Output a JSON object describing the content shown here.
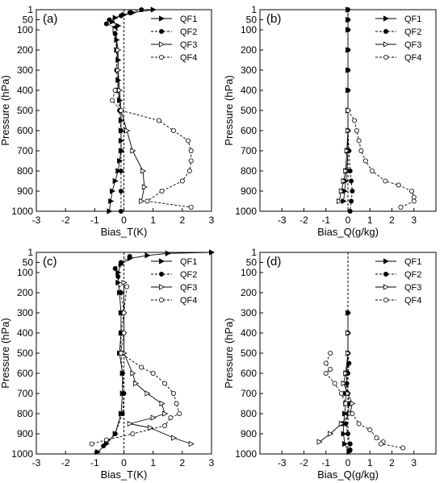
{
  "chart_data": [
    {
      "panel_label": "(a)",
      "type": "line",
      "xlabel": "Bias_T(K)",
      "ylabel": "Pressure (hPa)",
      "xlim": [
        -3,
        3
      ],
      "ylim": [
        1000,
        1
      ],
      "xticks": [
        -3,
        -2,
        -1,
        0,
        1,
        2,
        3
      ],
      "yticks": [
        1,
        50,
        100,
        200,
        300,
        400,
        500,
        600,
        700,
        800,
        900,
        1000
      ],
      "grid": false,
      "legend_position": "top-right",
      "reference_line_x": 0,
      "series": [
        {
          "name": "QF1",
          "marker": "right-triangle-filled",
          "line": "solid",
          "points": [
            [
              1.0,
              1
            ],
            [
              0.3,
              15
            ],
            [
              0.0,
              25
            ],
            [
              -0.3,
              40
            ],
            [
              -0.4,
              60
            ],
            [
              -0.2,
              80
            ],
            [
              -0.3,
              100
            ],
            [
              -0.25,
              150
            ],
            [
              -0.25,
              200
            ],
            [
              -0.2,
              250
            ],
            [
              -0.2,
              300
            ],
            [
              -0.2,
              350
            ],
            [
              -0.2,
              400
            ],
            [
              -0.15,
              450
            ],
            [
              -0.1,
              500
            ],
            [
              -0.1,
              550
            ],
            [
              -0.1,
              600
            ],
            [
              -0.1,
              650
            ],
            [
              -0.1,
              700
            ],
            [
              -0.15,
              750
            ],
            [
              -0.2,
              800
            ],
            [
              -0.3,
              850
            ],
            [
              -0.4,
              900
            ],
            [
              -0.45,
              950
            ],
            [
              -0.5,
              1000
            ]
          ]
        },
        {
          "name": "QF2",
          "marker": "circle-filled",
          "line": "dashed",
          "points": [
            [
              0.6,
              1
            ],
            [
              0.2,
              15
            ],
            [
              -0.1,
              30
            ],
            [
              -0.5,
              50
            ],
            [
              -0.6,
              70
            ],
            [
              -0.3,
              90
            ],
            [
              -0.3,
              120
            ],
            [
              -0.25,
              200
            ],
            [
              -0.25,
              300
            ],
            [
              -0.2,
              400
            ],
            [
              -0.15,
              500
            ],
            [
              -0.1,
              600
            ],
            [
              -0.1,
              700
            ],
            [
              -0.1,
              800
            ],
            [
              -0.1,
              900
            ],
            [
              -0.1,
              1000
            ]
          ]
        },
        {
          "name": "QF3",
          "marker": "right-triangle-open",
          "line": "solid",
          "points": [
            [
              -0.3,
              100
            ],
            [
              -0.2,
              200
            ],
            [
              -0.2,
              300
            ],
            [
              -0.15,
              400
            ],
            [
              -0.1,
              500
            ],
            [
              0.1,
              600
            ],
            [
              0.3,
              700
            ],
            [
              0.65,
              800
            ],
            [
              0.7,
              880
            ],
            [
              0.6,
              950
            ]
          ]
        },
        {
          "name": "QF4",
          "marker": "circle-open",
          "line": "dashed",
          "points": [
            [
              -0.3,
              400
            ],
            [
              -0.4,
              450
            ],
            [
              -0.1,
              500
            ],
            [
              1.2,
              550
            ],
            [
              1.7,
              600
            ],
            [
              2.2,
              650
            ],
            [
              2.3,
              700
            ],
            [
              2.3,
              750
            ],
            [
              2.25,
              800
            ],
            [
              2.0,
              850
            ],
            [
              1.3,
              900
            ],
            [
              0.8,
              950
            ],
            [
              2.3,
              980
            ]
          ]
        }
      ]
    },
    {
      "panel_label": "(b)",
      "type": "line",
      "xlabel": "Bias_Q(g/kg)",
      "ylabel": "Pressure (hPa)",
      "xlim": [
        -4,
        4
      ],
      "ylim": [
        1000,
        1
      ],
      "xticks": [
        -3,
        -2,
        -1,
        0,
        1,
        2,
        3
      ],
      "yticks": [
        1,
        50,
        100,
        200,
        300,
        400,
        500,
        600,
        700,
        800,
        900,
        1000
      ],
      "grid": false,
      "legend_position": "top-right",
      "reference_line_x": 0,
      "series": [
        {
          "name": "QF1",
          "marker": "right-triangle-filled",
          "line": "solid",
          "points": [
            [
              0,
              1
            ],
            [
              0,
              50
            ],
            [
              0,
              100
            ],
            [
              0,
              200
            ],
            [
              0,
              300
            ],
            [
              0,
              400
            ],
            [
              0,
              500
            ],
            [
              0,
              600
            ],
            [
              0,
              700
            ],
            [
              -0.05,
              800
            ],
            [
              -0.1,
              850
            ],
            [
              -0.15,
              900
            ],
            [
              -0.2,
              950
            ]
          ]
        },
        {
          "name": "QF2",
          "marker": "circle-filled",
          "line": "dashed",
          "points": [
            [
              0,
              1
            ],
            [
              0,
              50
            ],
            [
              0,
              100
            ],
            [
              0,
              200
            ],
            [
              0,
              300
            ],
            [
              0,
              400
            ],
            [
              0,
              500
            ],
            [
              0,
              600
            ],
            [
              0.05,
              700
            ],
            [
              0.1,
              800
            ],
            [
              0.15,
              850
            ],
            [
              0.2,
              900
            ],
            [
              0.15,
              950
            ],
            [
              0.1,
              1000
            ]
          ]
        },
        {
          "name": "QF3",
          "marker": "right-triangle-open",
          "line": "solid",
          "points": [
            [
              0,
              500
            ],
            [
              0,
              600
            ],
            [
              -0.05,
              700
            ],
            [
              -0.1,
              800
            ],
            [
              -0.2,
              850
            ],
            [
              -0.3,
              900
            ],
            [
              -0.4,
              950
            ]
          ]
        },
        {
          "name": "QF4",
          "marker": "circle-open",
          "line": "dashed",
          "points": [
            [
              0,
              500
            ],
            [
              0.3,
              550
            ],
            [
              0.4,
              600
            ],
            [
              0.5,
              650
            ],
            [
              0.6,
              700
            ],
            [
              0.8,
              750
            ],
            [
              1.1,
              800
            ],
            [
              1.7,
              850
            ],
            [
              2.3,
              870
            ],
            [
              2.9,
              900
            ],
            [
              3.0,
              930
            ],
            [
              3.0,
              950
            ],
            [
              2.4,
              980
            ]
          ]
        }
      ]
    },
    {
      "panel_label": "(c)",
      "type": "line",
      "xlabel": "Bias_T(K)",
      "ylabel": "Pressure (hPa)",
      "xlim": [
        -3,
        3
      ],
      "ylim": [
        1000,
        1
      ],
      "xticks": [
        -3,
        -2,
        -1,
        0,
        1,
        2,
        3
      ],
      "yticks": [
        1,
        50,
        100,
        200,
        300,
        400,
        500,
        600,
        700,
        800,
        900,
        1000
      ],
      "grid": false,
      "legend_position": "top-right",
      "reference_line_x": 0,
      "series": [
        {
          "name": "QF1",
          "marker": "right-triangle-filled",
          "line": "solid",
          "points": [
            [
              3.0,
              1
            ],
            [
              1.5,
              5
            ],
            [
              0.8,
              15
            ],
            [
              0.2,
              30
            ],
            [
              -0.1,
              60
            ],
            [
              -0.2,
              100
            ],
            [
              -0.2,
              150
            ],
            [
              -0.15,
              200
            ],
            [
              -0.1,
              300
            ],
            [
              -0.1,
              400
            ],
            [
              -0.15,
              500
            ],
            [
              -0.05,
              600
            ],
            [
              -0.05,
              700
            ],
            [
              -0.1,
              800
            ],
            [
              -0.3,
              900
            ],
            [
              -0.6,
              950
            ],
            [
              -0.9,
              990
            ]
          ]
        },
        {
          "name": "QF2",
          "marker": "circle-filled",
          "line": "dashed",
          "points": [
            [
              0.2,
              20
            ],
            [
              -0.1,
              50
            ],
            [
              -0.3,
              80
            ],
            [
              -0.2,
              120
            ],
            [
              -0.1,
              200
            ],
            [
              0.0,
              300
            ],
            [
              -0.1,
              400
            ],
            [
              -0.1,
              500
            ],
            [
              -0.05,
              600
            ],
            [
              0.0,
              700
            ],
            [
              -0.05,
              800
            ],
            [
              -0.3,
              900
            ],
            [
              -0.7,
              960
            ]
          ]
        },
        {
          "name": "QF3",
          "marker": "right-triangle-open",
          "line": "solid",
          "points": [
            [
              0.0,
              150
            ],
            [
              0.0,
              300
            ],
            [
              0.0,
              400
            ],
            [
              0.0,
              500
            ],
            [
              0.3,
              600
            ],
            [
              0.4,
              650
            ],
            [
              0.8,
              700
            ],
            [
              1.3,
              750
            ],
            [
              1.4,
              800
            ],
            [
              1.0,
              820
            ],
            [
              0.2,
              850
            ],
            [
              0.9,
              870
            ],
            [
              1.7,
              920
            ],
            [
              2.3,
              950
            ]
          ]
        },
        {
          "name": "QF4",
          "marker": "circle-open",
          "line": "dashed",
          "points": [
            [
              0.1,
              170
            ],
            [
              0.0,
              300
            ],
            [
              0.0,
              400
            ],
            [
              -0.1,
              500
            ],
            [
              0.6,
              570
            ],
            [
              1.0,
              600
            ],
            [
              1.4,
              650
            ],
            [
              1.7,
              700
            ],
            [
              1.8,
              750
            ],
            [
              1.9,
              800
            ],
            [
              1.6,
              820
            ],
            [
              1.4,
              860
            ],
            [
              0.3,
              900
            ],
            [
              -0.6,
              930
            ],
            [
              -1.1,
              950
            ]
          ]
        }
      ]
    },
    {
      "panel_label": "(d)",
      "type": "line",
      "xlabel": "Bias_Q(g/kg)",
      "ylabel": "Pressure (hPa)",
      "xlim": [
        -4,
        4
      ],
      "ylim": [
        1000,
        1
      ],
      "xticks": [
        -3,
        -2,
        -1,
        0,
        1,
        2,
        3
      ],
      "yticks": [
        1,
        50,
        100,
        200,
        300,
        400,
        500,
        600,
        700,
        800,
        900,
        1000
      ],
      "grid": false,
      "legend_position": "top-right",
      "reference_line_x": 0,
      "series": [
        {
          "name": "QF1",
          "marker": "right-triangle-filled",
          "line": "solid",
          "points": [
            [
              0,
              300
            ],
            [
              0,
              400
            ],
            [
              0,
              500
            ],
            [
              -0.05,
              600
            ],
            [
              -0.1,
              700
            ],
            [
              -0.1,
              750
            ],
            [
              -0.15,
              800
            ],
            [
              -0.2,
              850
            ],
            [
              -0.2,
              900
            ],
            [
              -0.15,
              950
            ],
            [
              0.05,
              990
            ]
          ]
        },
        {
          "name": "QF2",
          "marker": "circle-filled",
          "line": "dashed",
          "points": [
            [
              0,
              300
            ],
            [
              0,
              400
            ],
            [
              0,
              500
            ],
            [
              0.05,
              550
            ],
            [
              0.0,
              600
            ],
            [
              -0.05,
              650
            ],
            [
              0.0,
              700
            ],
            [
              0.05,
              750
            ],
            [
              0.0,
              800
            ],
            [
              -0.1,
              850
            ],
            [
              0.0,
              900
            ],
            [
              0.1,
              950
            ],
            [
              0.1,
              980
            ]
          ]
        },
        {
          "name": "QF3",
          "marker": "right-triangle-open",
          "line": "solid",
          "points": [
            [
              0,
              400
            ],
            [
              0,
              500
            ],
            [
              -0.1,
              600
            ],
            [
              -0.2,
              650
            ],
            [
              0.0,
              700
            ],
            [
              0.2,
              750
            ],
            [
              0.1,
              800
            ],
            [
              -0.3,
              850
            ],
            [
              -0.8,
              900
            ],
            [
              -1.3,
              940
            ]
          ]
        },
        {
          "name": "QF4",
          "marker": "circle-open",
          "line": "dashed",
          "points": [
            [
              -0.8,
              500
            ],
            [
              -1.0,
              550
            ],
            [
              -0.8,
              580
            ],
            [
              -1.0,
              600
            ],
            [
              -0.6,
              650
            ],
            [
              -0.3,
              700
            ],
            [
              -0.1,
              750
            ],
            [
              0.2,
              800
            ],
            [
              0.5,
              850
            ],
            [
              1.0,
              880
            ],
            [
              1.3,
              920
            ],
            [
              1.6,
              940
            ],
            [
              1.5,
              950
            ],
            [
              2.5,
              970
            ]
          ]
        }
      ]
    }
  ]
}
